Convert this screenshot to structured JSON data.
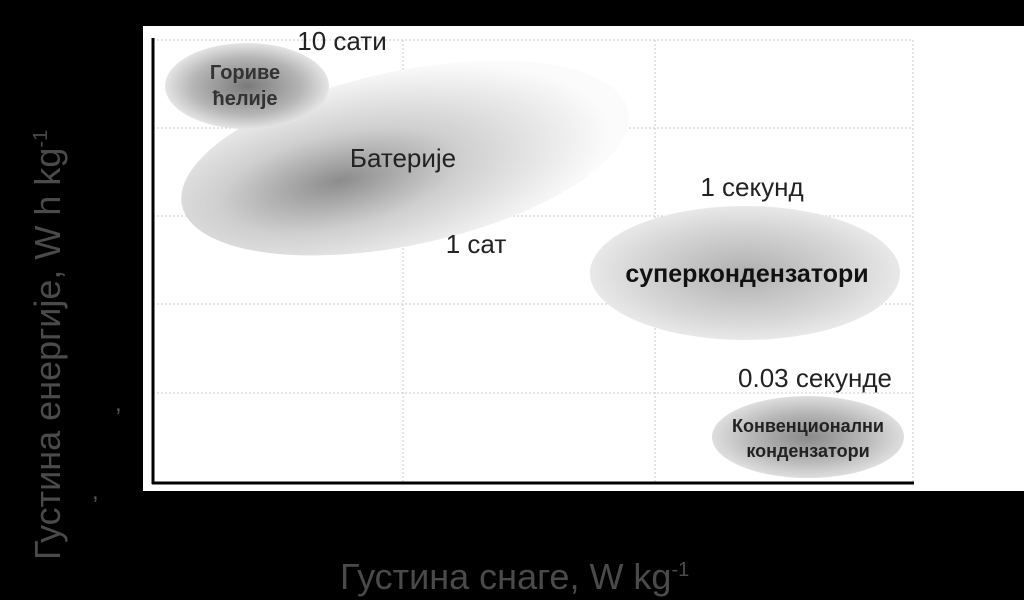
{
  "axes": {
    "x_label": "Густина снаге, W kg",
    "x_label_sup": "-1",
    "y_label": "Густина енергије, W h kg",
    "y_label_sup": "-1",
    "stray_marks": [
      ",",
      ","
    ]
  },
  "regions": [
    {
      "id": "fuel-cells",
      "lines": [
        "Гориве",
        "ћелије"
      ],
      "bold": true
    },
    {
      "id": "batteries",
      "lines": [
        "Батерије"
      ],
      "bold": false
    },
    {
      "id": "supercapacitors",
      "lines": [
        "суперкондензатори"
      ],
      "bold": true
    },
    {
      "id": "conventional-capacitors",
      "lines": [
        "Конвенционални",
        "кондензатори"
      ],
      "bold": true
    }
  ],
  "time_labels": [
    "10 сати",
    "1 сат",
    "1 секунд",
    "0.03 секунде"
  ],
  "colors": {
    "background": "#000000",
    "plot_background": "#ffffff",
    "axis": "#000000",
    "grid": "#c8c8c8",
    "axis_label": "#4a4a4a",
    "ellipse_dark": "#6e6e6e",
    "ellipse_light": "#ffffff"
  }
}
